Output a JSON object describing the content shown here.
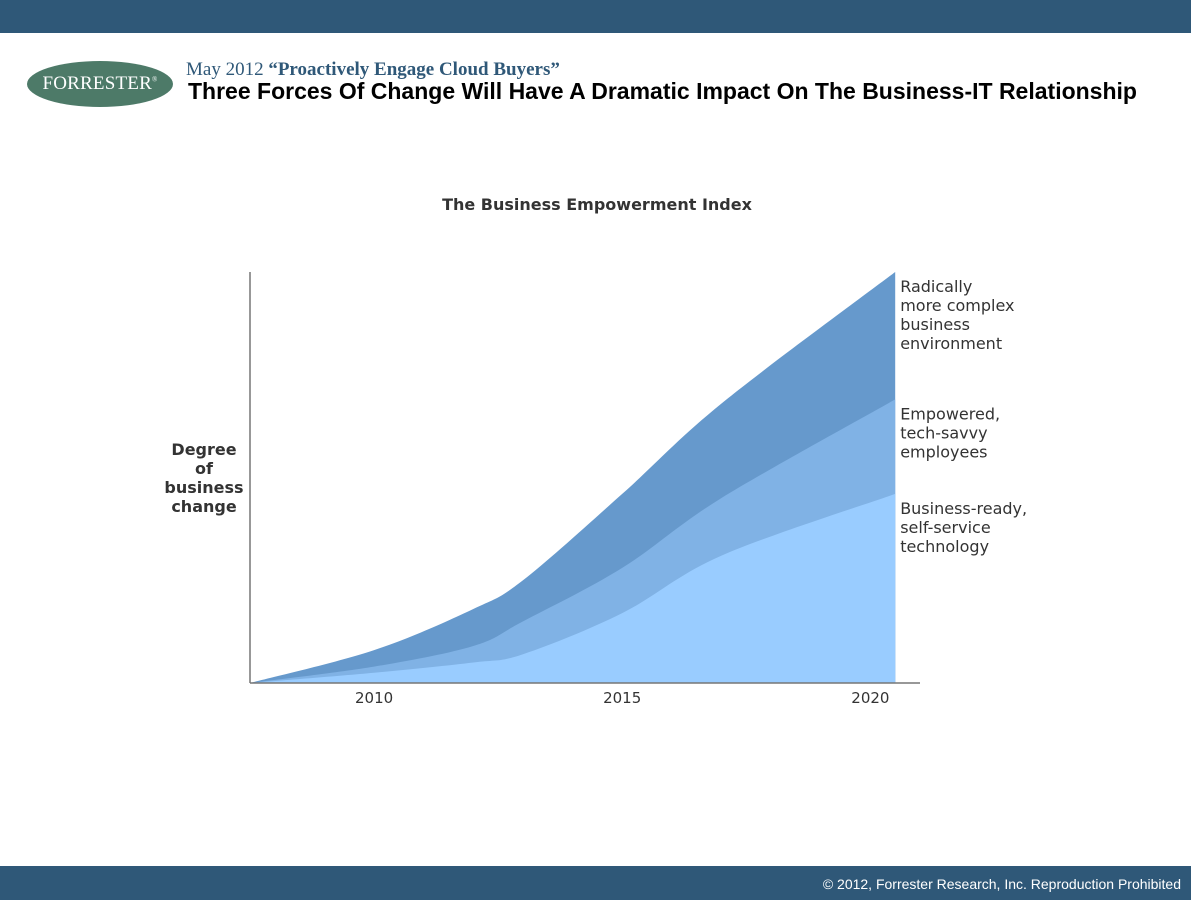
{
  "header": {
    "logo_text": "FORRESTER",
    "logo_mark": "®",
    "date": "May 2012",
    "report_title": "“Proactively Engage Cloud Buyers”",
    "slide_title": "Three Forces Of Change Will Have A Dramatic Impact On The Business-IT Relationship"
  },
  "footer": {
    "copyright": "© 2012, Forrester Research, Inc. Reproduction Prohibited"
  },
  "colors": {
    "bar": "#2f5878",
    "logo": "#4d7a68",
    "series_dark": "#6699cc",
    "series_mid": "#80b2e5",
    "series_light": "#99ccff"
  },
  "chart_data": {
    "type": "area",
    "stacked": true,
    "title": "The Business Empowerment Index",
    "ylabel_lines": [
      "Degree",
      "of",
      "business",
      "change"
    ],
    "xlabel": "",
    "xlim": [
      2007.5,
      2021
    ],
    "ylim": [
      0,
      100
    ],
    "x_ticks": [
      2010,
      2015,
      2020
    ],
    "y_ticks_shown": false,
    "x": [
      2007.5,
      2010,
      2012,
      2013,
      2015,
      2017,
      2020.5
    ],
    "series": [
      {
        "name_lines": [
          "Business-ready,",
          "self-service",
          "technology"
        ],
        "color": "#99ccff",
        "cumulative_values": [
          0,
          2.5,
          5,
          7,
          17,
          31,
          46
        ]
      },
      {
        "name_lines": [
          "Empowered,",
          "tech-savvy",
          "employees"
        ],
        "color": "#80b2e5",
        "cumulative_values": [
          0,
          4,
          9,
          15,
          28,
          45,
          69
        ]
      },
      {
        "name_lines": [
          "Radically",
          "more complex",
          "business",
          "environment"
        ],
        "color": "#6699cc",
        "cumulative_values": [
          0,
          8,
          18,
          25,
          46,
          68,
          100
        ]
      }
    ]
  }
}
